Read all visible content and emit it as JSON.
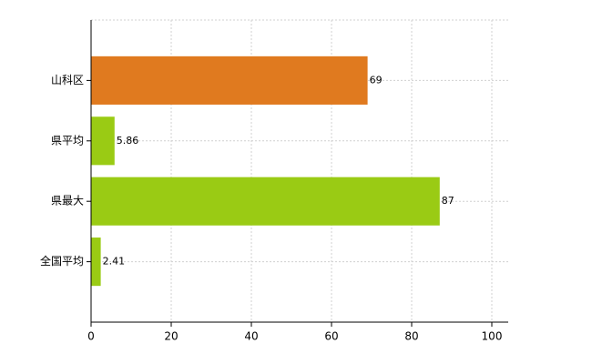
{
  "chart_data": {
    "type": "bar",
    "orientation": "horizontal",
    "categories": [
      "山科区",
      "県平均",
      "県最大",
      "全国平均"
    ],
    "values": [
      69,
      5.86,
      87,
      2.41
    ],
    "colors": [
      "#e07a1f",
      "#9acb14",
      "#9acb14",
      "#9acb14"
    ],
    "xlim": [
      0,
      100
    ],
    "xticks": [
      0,
      20,
      40,
      60,
      80,
      100
    ],
    "grid": true
  }
}
